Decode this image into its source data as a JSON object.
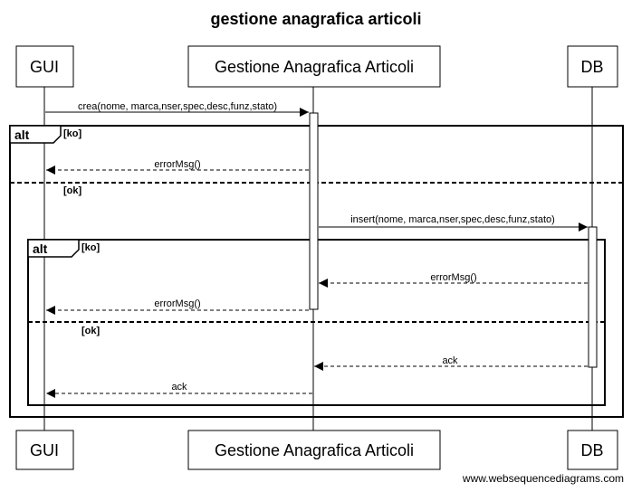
{
  "title": "gestione anagrafica articoli",
  "participants": [
    {
      "id": "gui",
      "label": "GUI"
    },
    {
      "id": "gaa",
      "label": "Gestione Anagrafica Articoli"
    },
    {
      "id": "db",
      "label": "DB"
    }
  ],
  "messages": [
    {
      "id": "m1",
      "label": "crea(nome, marca,nser,spec,desc,funz,stato)",
      "from": "gui",
      "to": "gaa",
      "style": "solid"
    },
    {
      "id": "m2",
      "label": "errorMsg()",
      "from": "gaa",
      "to": "gui",
      "style": "dashed"
    },
    {
      "id": "m3",
      "label": "insert(nome, marca,nser,spec,desc,funz,stato)",
      "from": "gaa",
      "to": "db",
      "style": "solid"
    },
    {
      "id": "m4",
      "label": "errorMsg()",
      "from": "db",
      "to": "gaa",
      "style": "dashed"
    },
    {
      "id": "m5",
      "label": "errorMsg()",
      "from": "gaa",
      "to": "gui",
      "style": "dashed"
    },
    {
      "id": "m6",
      "label": "ack",
      "from": "db",
      "to": "gaa",
      "style": "dashed"
    },
    {
      "id": "m7",
      "label": "ack",
      "from": "gaa",
      "to": "gui",
      "style": "dashed"
    }
  ],
  "fragments": [
    {
      "id": "outer",
      "keyword": "alt",
      "guards": [
        "[ko]",
        "[ok]"
      ]
    },
    {
      "id": "inner",
      "keyword": "alt",
      "guards": [
        "[ko]",
        "[ok]"
      ]
    }
  ],
  "watermark": "www.websequencediagrams.com"
}
